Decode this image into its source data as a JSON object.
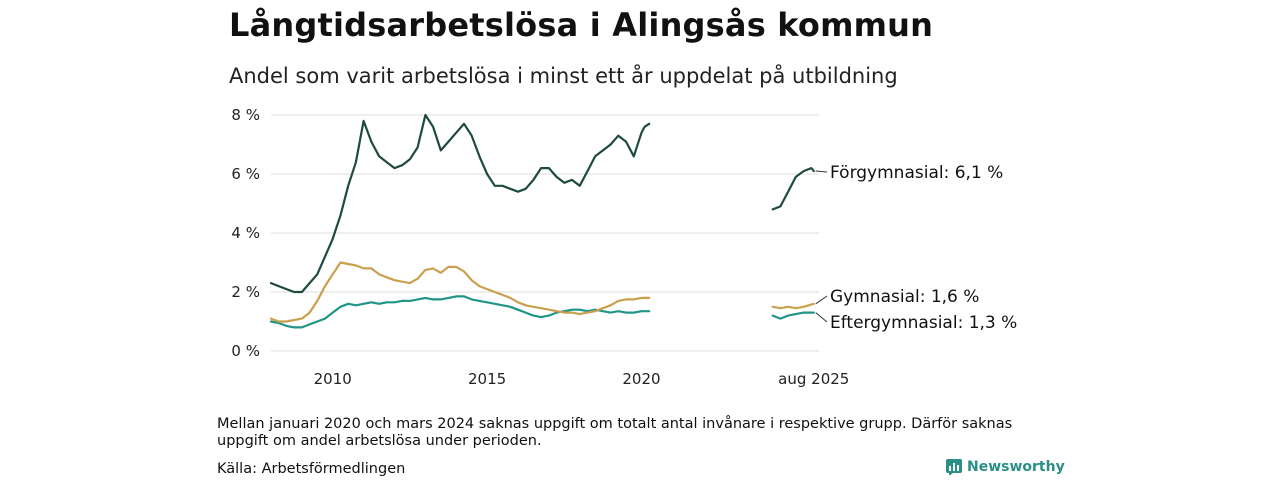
{
  "title": "Långtidsarbetslösa i Alingsås kommun",
  "subtitle": "Andel som varit arbetslösa i minst ett år uppdelat på utbildning",
  "note": "Mellan januari 2020 och mars 2024 saknas uppgift om totalt antal invånare i respektive grupp. Därför saknas uppgift om andel arbetslösa under perioden.",
  "source": "Källa: Arbetsförmedlingen",
  "brand": "Newsworthy",
  "colors": {
    "forgymnasial": "#1f4a3f",
    "gymnasial": "#c9a04e",
    "eftergymnasial": "#1f9585",
    "grid": "#dddddd"
  },
  "chart_data": {
    "type": "line",
    "title": "Långtidsarbetslösa i Alingsås kommun",
    "subtitle": "Andel som varit arbetslösa i minst ett år uppdelat på utbildning",
    "x_unit": "year",
    "xlim": [
      2008.0,
      2025.75
    ],
    "ylim": [
      0,
      8
    ],
    "y_ticks": [
      "0 %",
      "2 %",
      "4 %",
      "6 %",
      "8 %"
    ],
    "x_ticks": [
      "2010",
      "2015",
      "2020",
      "aug 2025"
    ],
    "grid": true,
    "gap": [
      "2020-01",
      "2024-03"
    ],
    "series": [
      {
        "name": "Förgymnasial",
        "end_label": "Förgymnasial: 6,1 %",
        "segments": [
          [
            [
              2008.0,
              2.3
            ],
            [
              2008.25,
              2.2
            ],
            [
              2008.5,
              2.1
            ],
            [
              2008.75,
              2.0
            ],
            [
              2009.0,
              2.0
            ],
            [
              2009.25,
              2.3
            ],
            [
              2009.5,
              2.6
            ],
            [
              2009.75,
              3.2
            ],
            [
              2010.0,
              3.8
            ],
            [
              2010.25,
              4.6
            ],
            [
              2010.5,
              5.6
            ],
            [
              2010.75,
              6.4
            ],
            [
              2011.0,
              7.8
            ],
            [
              2011.25,
              7.1
            ],
            [
              2011.5,
              6.6
            ],
            [
              2011.75,
              6.4
            ],
            [
              2012.0,
              6.2
            ],
            [
              2012.25,
              6.3
            ],
            [
              2012.5,
              6.5
            ],
            [
              2012.75,
              6.9
            ],
            [
              2013.0,
              8.0
            ],
            [
              2013.25,
              7.6
            ],
            [
              2013.5,
              6.8
            ],
            [
              2013.75,
              7.1
            ],
            [
              2014.0,
              7.4
            ],
            [
              2014.25,
              7.7
            ],
            [
              2014.5,
              7.3
            ],
            [
              2014.75,
              6.6
            ],
            [
              2015.0,
              6.0
            ],
            [
              2015.25,
              5.6
            ],
            [
              2015.5,
              5.6
            ],
            [
              2015.75,
              5.5
            ],
            [
              2016.0,
              5.4
            ],
            [
              2016.25,
              5.5
            ],
            [
              2016.5,
              5.8
            ],
            [
              2016.75,
              6.2
            ],
            [
              2017.0,
              6.2
            ],
            [
              2017.25,
              5.9
            ],
            [
              2017.5,
              5.7
            ],
            [
              2017.75,
              5.8
            ],
            [
              2018.0,
              5.6
            ],
            [
              2018.25,
              6.1
            ],
            [
              2018.5,
              6.6
            ],
            [
              2018.75,
              6.8
            ],
            [
              2019.0,
              7.0
            ],
            [
              2019.25,
              7.3
            ],
            [
              2019.5,
              7.1
            ],
            [
              2019.75,
              6.6
            ],
            [
              2020.0,
              7.4
            ],
            [
              2020.1,
              7.6
            ],
            [
              2020.25,
              7.7
            ]
          ],
          [
            [
              2024.25,
              4.8
            ],
            [
              2024.5,
              4.9
            ],
            [
              2024.75,
              5.4
            ],
            [
              2025.0,
              5.9
            ],
            [
              2025.25,
              6.1
            ],
            [
              2025.5,
              6.2
            ],
            [
              2025.58,
              6.1
            ]
          ]
        ]
      },
      {
        "name": "Gymnasial",
        "end_label": "Gymnasial: 1,6 %",
        "segments": [
          [
            [
              2008.0,
              1.1
            ],
            [
              2008.25,
              1.0
            ],
            [
              2008.5,
              1.0
            ],
            [
              2008.75,
              1.05
            ],
            [
              2009.0,
              1.1
            ],
            [
              2009.25,
              1.3
            ],
            [
              2009.5,
              1.7
            ],
            [
              2009.75,
              2.2
            ],
            [
              2010.0,
              2.6
            ],
            [
              2010.25,
              3.0
            ],
            [
              2010.5,
              2.95
            ],
            [
              2010.75,
              2.9
            ],
            [
              2011.0,
              2.8
            ],
            [
              2011.25,
              2.8
            ],
            [
              2011.5,
              2.6
            ],
            [
              2011.75,
              2.5
            ],
            [
              2012.0,
              2.4
            ],
            [
              2012.25,
              2.35
            ],
            [
              2012.5,
              2.3
            ],
            [
              2012.75,
              2.45
            ],
            [
              2013.0,
              2.75
            ],
            [
              2013.25,
              2.8
            ],
            [
              2013.5,
              2.65
            ],
            [
              2013.75,
              2.85
            ],
            [
              2014.0,
              2.85
            ],
            [
              2014.25,
              2.7
            ],
            [
              2014.5,
              2.4
            ],
            [
              2014.75,
              2.2
            ],
            [
              2015.0,
              2.1
            ],
            [
              2015.25,
              2.0
            ],
            [
              2015.5,
              1.9
            ],
            [
              2015.75,
              1.8
            ],
            [
              2016.0,
              1.65
            ],
            [
              2016.25,
              1.55
            ],
            [
              2016.5,
              1.5
            ],
            [
              2016.75,
              1.45
            ],
            [
              2017.0,
              1.4
            ],
            [
              2017.25,
              1.35
            ],
            [
              2017.5,
              1.3
            ],
            [
              2017.75,
              1.3
            ],
            [
              2018.0,
              1.25
            ],
            [
              2018.25,
              1.3
            ],
            [
              2018.5,
              1.35
            ],
            [
              2018.75,
              1.45
            ],
            [
              2019.0,
              1.55
            ],
            [
              2019.25,
              1.7
            ],
            [
              2019.5,
              1.75
            ],
            [
              2019.75,
              1.75
            ],
            [
              2020.0,
              1.8
            ],
            [
              2020.25,
              1.8
            ]
          ],
          [
            [
              2024.25,
              1.5
            ],
            [
              2024.5,
              1.45
            ],
            [
              2024.75,
              1.5
            ],
            [
              2025.0,
              1.45
            ],
            [
              2025.25,
              1.5
            ],
            [
              2025.58,
              1.6
            ]
          ]
        ]
      },
      {
        "name": "Eftergymnasial",
        "end_label": "Eftergymnasial: 1,3 %",
        "segments": [
          [
            [
              2008.0,
              1.0
            ],
            [
              2008.25,
              0.95
            ],
            [
              2008.5,
              0.85
            ],
            [
              2008.75,
              0.8
            ],
            [
              2009.0,
              0.8
            ],
            [
              2009.25,
              0.9
            ],
            [
              2009.5,
              1.0
            ],
            [
              2009.75,
              1.1
            ],
            [
              2010.0,
              1.3
            ],
            [
              2010.25,
              1.5
            ],
            [
              2010.5,
              1.6
            ],
            [
              2010.75,
              1.55
            ],
            [
              2011.0,
              1.6
            ],
            [
              2011.25,
              1.65
            ],
            [
              2011.5,
              1.6
            ],
            [
              2011.75,
              1.65
            ],
            [
              2012.0,
              1.65
            ],
            [
              2012.25,
              1.7
            ],
            [
              2012.5,
              1.7
            ],
            [
              2012.75,
              1.75
            ],
            [
              2013.0,
              1.8
            ],
            [
              2013.25,
              1.75
            ],
            [
              2013.5,
              1.75
            ],
            [
              2013.75,
              1.8
            ],
            [
              2014.0,
              1.85
            ],
            [
              2014.25,
              1.85
            ],
            [
              2014.5,
              1.75
            ],
            [
              2014.75,
              1.7
            ],
            [
              2015.0,
              1.65
            ],
            [
              2015.25,
              1.6
            ],
            [
              2015.5,
              1.55
            ],
            [
              2015.75,
              1.5
            ],
            [
              2016.0,
              1.4
            ],
            [
              2016.25,
              1.3
            ],
            [
              2016.5,
              1.2
            ],
            [
              2016.75,
              1.15
            ],
            [
              2017.0,
              1.2
            ],
            [
              2017.25,
              1.3
            ],
            [
              2017.5,
              1.35
            ],
            [
              2017.75,
              1.4
            ],
            [
              2018.0,
              1.4
            ],
            [
              2018.25,
              1.35
            ],
            [
              2018.5,
              1.4
            ],
            [
              2018.75,
              1.35
            ],
            [
              2019.0,
              1.3
            ],
            [
              2019.25,
              1.35
            ],
            [
              2019.5,
              1.3
            ],
            [
              2019.75,
              1.3
            ],
            [
              2020.0,
              1.35
            ],
            [
              2020.25,
              1.35
            ]
          ],
          [
            [
              2024.25,
              1.2
            ],
            [
              2024.5,
              1.1
            ],
            [
              2024.75,
              1.2
            ],
            [
              2025.0,
              1.25
            ],
            [
              2025.25,
              1.3
            ],
            [
              2025.58,
              1.3
            ]
          ]
        ]
      }
    ]
  }
}
